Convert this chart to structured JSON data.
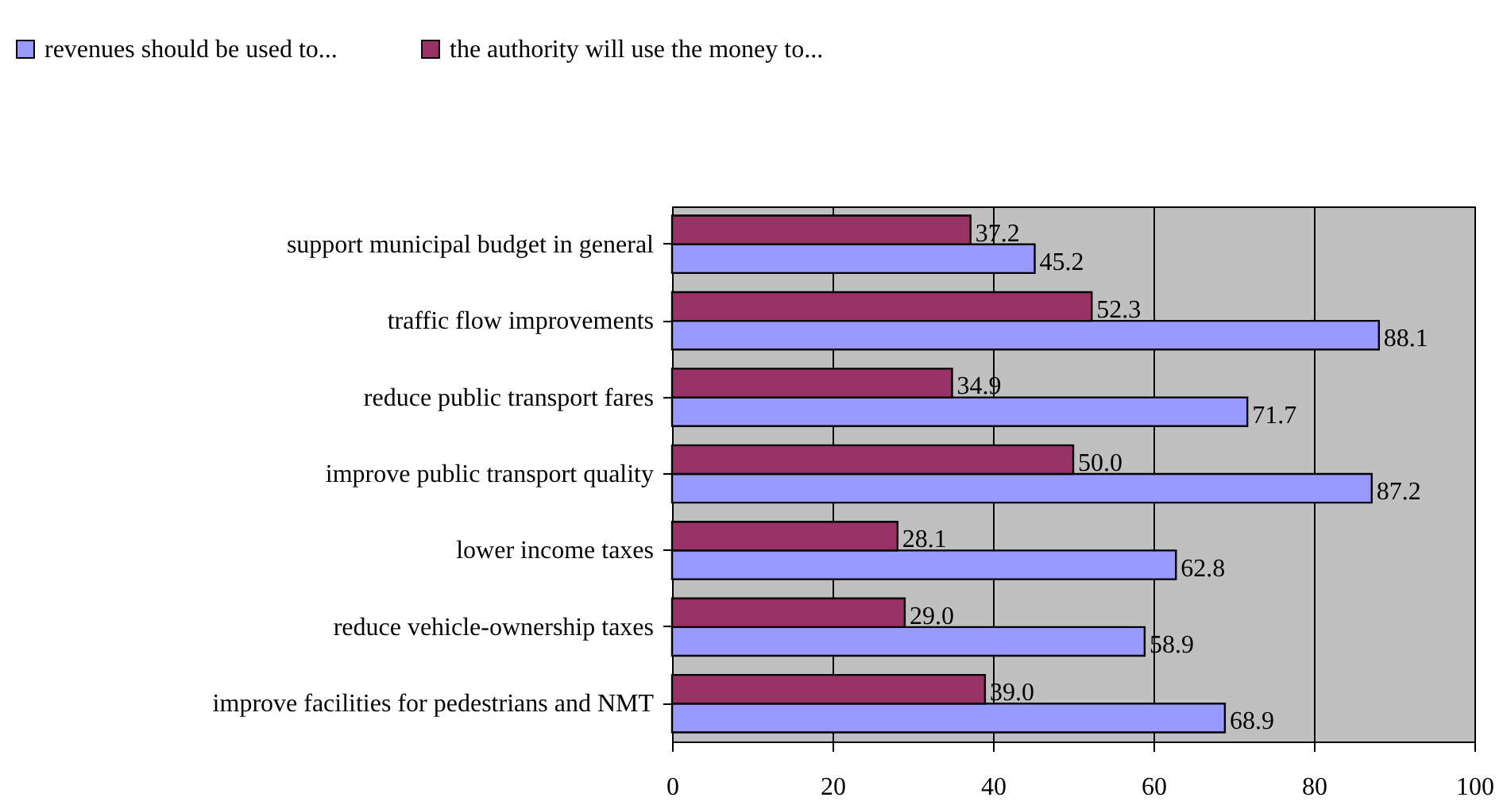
{
  "chart_data": {
    "type": "bar",
    "orientation": "horizontal",
    "categories": [
      "support municipal budget in general",
      "traffic flow improvements",
      "reduce public transport fares",
      "improve public transport quality",
      "lower income taxes",
      "reduce vehicle-ownership taxes",
      "improve facilities for pedestrians and NMT"
    ],
    "series": [
      {
        "name": "revenues should be used to...",
        "color": "#9999ff",
        "values": [
          45.2,
          88.1,
          71.7,
          87.2,
          62.8,
          58.9,
          68.9
        ],
        "value_labels": [
          "45.2",
          "88.1",
          "71.7",
          "87.2",
          "62.8",
          "58.9",
          "68.9"
        ]
      },
      {
        "name": "the authority will use the money to...",
        "color": "#993366",
        "values": [
          37.2,
          52.3,
          34.9,
          50.0,
          28.1,
          29.0,
          39.0
        ],
        "value_labels": [
          "37.2",
          "52.3",
          "34.9",
          "50.0",
          "28.1",
          "29.0",
          "39.0"
        ]
      }
    ],
    "xlim": [
      0,
      100
    ],
    "xticks": [
      0,
      20,
      40,
      60,
      80,
      100
    ],
    "grid": "x",
    "legend": "top left"
  }
}
